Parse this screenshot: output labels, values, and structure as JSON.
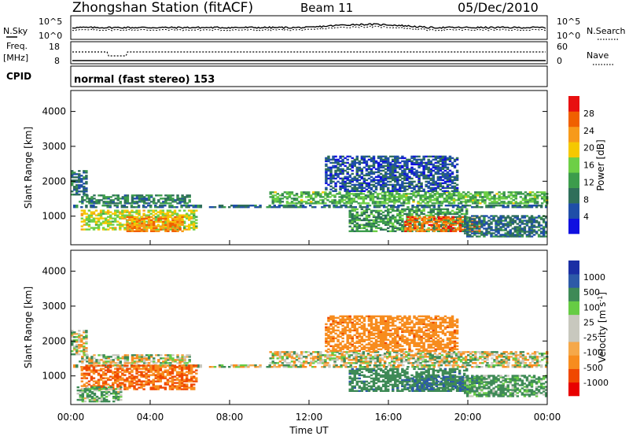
{
  "header": {
    "title": "Zhongshan Station (fitACF)",
    "beam": "Beam 11",
    "date": "05/Dec/2010"
  },
  "noise_panel": {
    "left_label": "N.Sky",
    "left_ticks": [
      "10^5",
      "10^0"
    ],
    "right_ticks": [
      "10^5",
      "10^0"
    ],
    "right_label": "N.Search"
  },
  "freq_panel": {
    "left_label_1": "Freq.",
    "left_label_2": "[MHz]",
    "left_ticks": [
      "18",
      "8"
    ],
    "right_ticks": [
      "60",
      "0"
    ],
    "right_label": "Nave"
  },
  "cpid_panel": {
    "label": "CPID",
    "value": "normal (fast stereo) 153"
  },
  "colors": {
    "power": [
      "#1010e0",
      "#1f4ea8",
      "#2f6f5a",
      "#3c9c4c",
      "#6dcf46",
      "#f5c800",
      "#f79a1a",
      "#f06000",
      "#e81010"
    ],
    "velocity": [
      "#e80000",
      "#f04800",
      "#f78c1e",
      "#f5a84a",
      "#c8c8be",
      "#c8c8be",
      "#66cc44",
      "#3e8a56",
      "#2d5aa8",
      "#1b2fa4"
    ]
  },
  "chart_data": [
    {
      "type": "heatmap",
      "title": "",
      "xlabel": "Time UT",
      "ylabel": "Slant Range [km]",
      "x_ticks": [
        "00:00",
        "04:00",
        "08:00",
        "12:00",
        "16:00",
        "20:00",
        "00:00"
      ],
      "x_range_hours": [
        0,
        24
      ],
      "y_ticks": [
        1000,
        2000,
        3000,
        4000
      ],
      "ylim": [
        180,
        4600
      ],
      "colorbar": {
        "label": "Power [dB]",
        "ticks": [
          4,
          8,
          12,
          16,
          20,
          24,
          28
        ],
        "range": [
          0,
          32
        ]
      },
      "echo_regions": [
        {
          "t_start": 0.0,
          "t_end": 0.8,
          "r_min": 1600,
          "r_max": 2300,
          "value": 8
        },
        {
          "t_start": 0.0,
          "t_end": 24.0,
          "r_min": 1240,
          "r_max": 1320,
          "value": 8
        },
        {
          "t_start": 0.4,
          "t_end": 6.0,
          "r_min": 1350,
          "r_max": 1600,
          "value": 10
        },
        {
          "t_start": 0.5,
          "t_end": 6.3,
          "r_min": 600,
          "r_max": 1150,
          "value": 18
        },
        {
          "t_start": 2.8,
          "t_end": 5.6,
          "r_min": 550,
          "r_max": 1000,
          "value": 24
        },
        {
          "t_start": 10.0,
          "t_end": 24.0,
          "r_min": 1350,
          "r_max": 1700,
          "value": 14
        },
        {
          "t_start": 12.8,
          "t_end": 19.5,
          "r_min": 1700,
          "r_max": 2700,
          "value": 6
        },
        {
          "t_start": 14.0,
          "t_end": 20.0,
          "r_min": 550,
          "r_max": 1200,
          "value": 12
        },
        {
          "t_start": 16.8,
          "t_end": 20.6,
          "r_min": 550,
          "r_max": 1000,
          "value": 26
        },
        {
          "t_start": 19.8,
          "t_end": 24.0,
          "r_min": 400,
          "r_max": 1000,
          "value": 8
        }
      ]
    },
    {
      "type": "heatmap",
      "title": "",
      "xlabel": "Time UT",
      "ylabel": "Slant Range [km]",
      "x_ticks": [
        "00:00",
        "04:00",
        "08:00",
        "12:00",
        "16:00",
        "20:00",
        "00:00"
      ],
      "x_range_hours": [
        0,
        24
      ],
      "y_ticks": [
        1000,
        2000,
        3000,
        4000
      ],
      "ylim": [
        180,
        4600
      ],
      "colorbar": {
        "label": "Velocity [m s^-1]",
        "ticks": [
          1000,
          500,
          100,
          25,
          -25,
          -100,
          -500,
          -1000
        ]
      },
      "echo_regions": [
        {
          "t_start": 0.0,
          "t_end": 0.8,
          "r_min": 1600,
          "r_max": 2300,
          "value": 0
        },
        {
          "t_start": 0.0,
          "t_end": 24.0,
          "r_min": 1240,
          "r_max": 1320,
          "value": 0
        },
        {
          "t_start": 0.4,
          "t_end": 6.0,
          "r_min": 1350,
          "r_max": 1600,
          "value": 0
        },
        {
          "t_start": 0.5,
          "t_end": 6.3,
          "r_min": 600,
          "r_max": 1300,
          "value": -300
        },
        {
          "t_start": 0.3,
          "t_end": 2.5,
          "r_min": 250,
          "r_max": 700,
          "value": 80
        },
        {
          "t_start": 10.0,
          "t_end": 24.0,
          "r_min": 1350,
          "r_max": 1700,
          "value": 0
        },
        {
          "t_start": 12.8,
          "t_end": 19.5,
          "r_min": 1700,
          "r_max": 2700,
          "value": -200
        },
        {
          "t_start": 14.0,
          "t_end": 20.0,
          "r_min": 550,
          "r_max": 1200,
          "value": 200
        },
        {
          "t_start": 16.8,
          "t_end": 20.6,
          "r_min": 550,
          "r_max": 1000,
          "value": 300
        },
        {
          "t_start": 19.8,
          "t_end": 24.0,
          "r_min": 400,
          "r_max": 1000,
          "value": 100
        }
      ]
    }
  ]
}
